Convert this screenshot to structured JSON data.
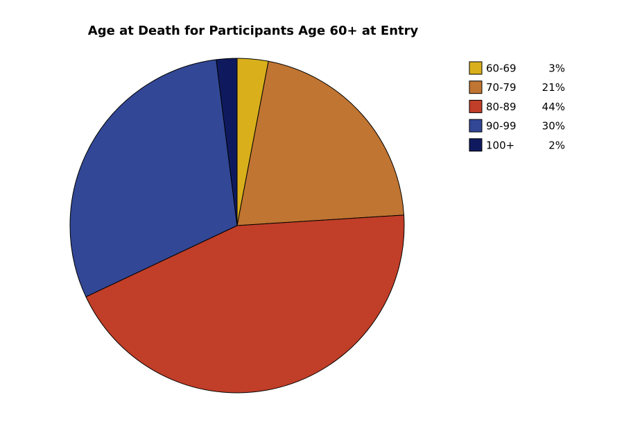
{
  "chart_data": {
    "type": "pie",
    "title": "Age at Death for Participants Age 60+ at Entry",
    "categories": [
      "60-69",
      "70-79",
      "80-89",
      "90-99",
      "100+"
    ],
    "values": [
      3,
      21,
      44,
      30,
      2
    ],
    "value_labels": [
      "3%",
      "21%",
      "44%",
      "30%",
      "2%"
    ],
    "colors": [
      "#d9b01c",
      "#c07532",
      "#c13e28",
      "#324795",
      "#0f1a5e"
    ],
    "legend": "top-right"
  }
}
